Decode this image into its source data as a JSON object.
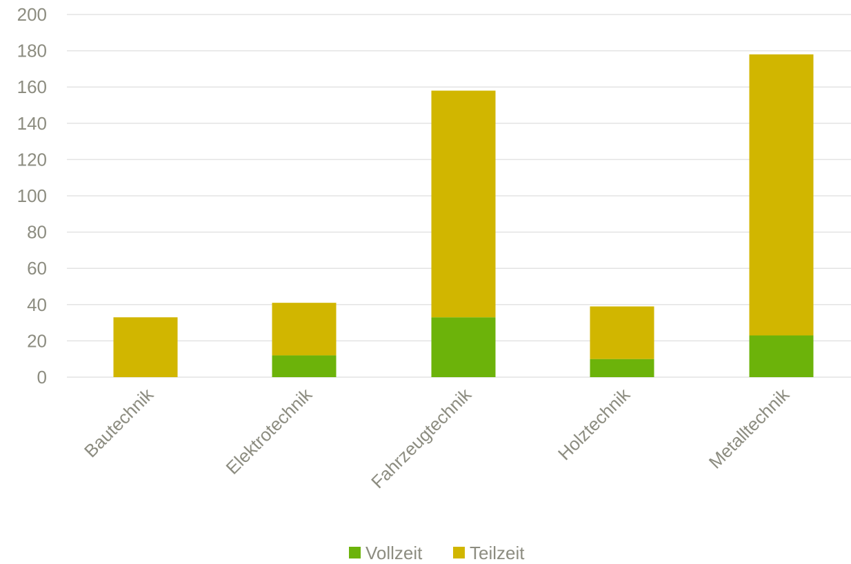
{
  "chart_data": {
    "type": "bar",
    "stacked": true,
    "categories": [
      "Bautechnik",
      "Elektrotechnik",
      "Fahrzeugtechnik",
      "Holztechnik",
      "Metalltechnik"
    ],
    "series": [
      {
        "name": "Vollzeit",
        "values": [
          0,
          12,
          33,
          10,
          23
        ]
      },
      {
        "name": "Teilzeit",
        "values": [
          33,
          29,
          125,
          29,
          155
        ]
      }
    ],
    "ylim": [
      0,
      200
    ],
    "yticks": [
      "0",
      "20",
      "40",
      "60",
      "80",
      "100",
      "120",
      "140",
      "160",
      "180",
      "200"
    ],
    "grid": true,
    "legend_position": "bottom",
    "title": "",
    "xlabel": "",
    "ylabel": ""
  },
  "colors": {
    "Vollzeit": "#6cb30a",
    "Teilzeit": "#d1b600",
    "grid": "#e3e3e3",
    "tick_text": "#8c8c80"
  }
}
